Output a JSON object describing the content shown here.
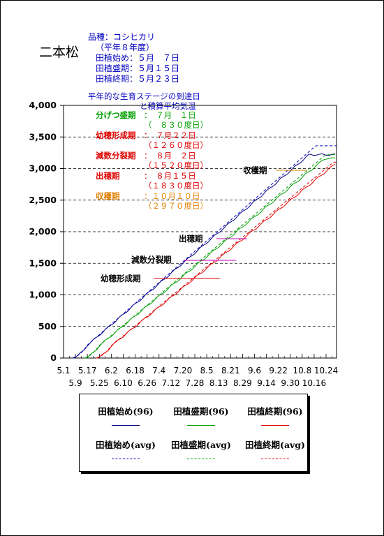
{
  "location": "二本松",
  "info": {
    "variety": "品種：コシヒカリ",
    "year": "（平年８年度）",
    "planting_start": "田植始め：５月　７日",
    "planting_peak": "田植盛期：５月１５日",
    "planting_end": "田植終期：５月２３日"
  },
  "stage_title": "平年的な生育ステージの到達日",
  "stage_subtitle": "と積算平均気温",
  "stages": [
    {
      "name": "分げつ盛期",
      "date": "：　７月　１日",
      "dd": "（　８３０度日）",
      "color": "#00a000"
    },
    {
      "name": "幼穂形成期",
      "date": "：　７月２２日",
      "dd": "（１２６０度日）",
      "color": "#e00000"
    },
    {
      "name": "減数分裂期",
      "date": "：　８月　２日",
      "dd": "（１５２０度日）",
      "color": "#e00000"
    },
    {
      "name": "出穂期",
      "date": "：　８月１５日",
      "dd": "（１８３０度日）",
      "color": "#e00000"
    },
    {
      "name": "収穫期",
      "date": "：１０月１０日",
      "dd": "（２９７０度日）",
      "color": "#e08000"
    }
  ],
  "chart_data": {
    "type": "line",
    "ylim": [
      0,
      4000
    ],
    "yticks": [
      "0",
      "500",
      "1,000",
      "1,500",
      "2,000",
      "2,500",
      "3,000",
      "3,500",
      "4,000"
    ],
    "xticks_top": [
      "5.1",
      "5.17",
      "6.2",
      "6.18",
      "7.4",
      "7.20",
      "8.5",
      "8.21",
      "9.6",
      "9.22",
      "10.8",
      "10.24"
    ],
    "xticks_bottom": [
      "5.9",
      "5.25",
      "6.10",
      "6.26",
      "7.12",
      "7.28",
      "8.13",
      "8.29",
      "9.14",
      "9.30",
      "10.16"
    ],
    "x_day_range": [
      0,
      183
    ],
    "annotations": [
      {
        "label": "幼穂形成期",
        "value": 1260,
        "x_range": [
          82,
          146
        ]
      },
      {
        "label": "減数分裂期",
        "value": 1520,
        "x_range": [
          94,
          158
        ]
      },
      {
        "label": "出穂期",
        "value": 1830,
        "x_range": [
          142,
          171
        ]
      },
      {
        "label": "収穫期",
        "value": 2970,
        "x_range": [
          196,
          229
        ]
      }
    ],
    "series": [
      {
        "name": "田植始め(96)",
        "color": "#000080",
        "style": "solid",
        "start": 6,
        "slope": 20.3,
        "end": 182,
        "final": 3220
      },
      {
        "name": "田植盛期(96)",
        "color": "#00a000",
        "style": "solid",
        "start": 14,
        "slope": 19.6,
        "end": 182,
        "final": 3160
      },
      {
        "name": "田植終期(96)",
        "color": "#e00000",
        "style": "solid",
        "start": 22,
        "slope": 19.2,
        "end": 182,
        "final": 3080
      },
      {
        "name": "田植始め(avg)",
        "color": "#0000c0",
        "style": "dashed",
        "start": 6,
        "slope": 20.6,
        "end": 183,
        "final": 3360
      },
      {
        "name": "田植盛期(avg)",
        "color": "#00a000",
        "style": "dashed",
        "start": 14,
        "slope": 19.9,
        "end": 183,
        "final": 3220
      },
      {
        "name": "田植終期(avg)",
        "color": "#e00000",
        "style": "dashed",
        "start": 22,
        "slope": 19.5,
        "end": 183,
        "final": 3100
      }
    ]
  },
  "legend": {
    "items": [
      {
        "label": "田植始め(96)",
        "color": "#000080",
        "style": "solid"
      },
      {
        "label": "田植盛期(96)",
        "color": "#00a000",
        "style": "solid"
      },
      {
        "label": "田植終期(96)",
        "color": "#e00000",
        "style": "solid"
      },
      {
        "label": "田植始め(avg)",
        "color": "#0000c0",
        "style": "dashed"
      },
      {
        "label": "田植盛期(avg)",
        "color": "#00a000",
        "style": "dashed"
      },
      {
        "label": "田植終期(avg)",
        "color": "#e00000",
        "style": "dashed"
      }
    ]
  }
}
